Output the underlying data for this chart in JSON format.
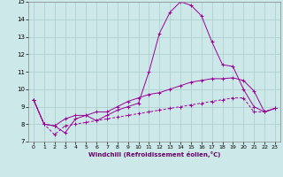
{
  "xlabel": "Windchill (Refroidissement éolien,°C)",
  "background_color": "#cce8e8",
  "grid_color": "#aacccc",
  "line_color": "#990099",
  "xlim": [
    -0.5,
    23.5
  ],
  "ylim": [
    7,
    15
  ],
  "xticks": [
    0,
    1,
    2,
    3,
    4,
    5,
    6,
    7,
    8,
    9,
    10,
    11,
    12,
    13,
    14,
    15,
    16,
    17,
    18,
    19,
    20,
    21,
    22,
    23
  ],
  "yticks": [
    7,
    8,
    9,
    10,
    11,
    12,
    13,
    14,
    15
  ],
  "line_big_x": [
    0,
    1,
    2,
    3,
    4,
    5,
    6,
    7,
    8,
    9,
    10,
    11,
    12,
    13,
    14,
    15,
    16,
    17,
    18,
    19,
    20,
    21,
    22,
    23
  ],
  "line_big_y": [
    9.4,
    8.0,
    7.9,
    7.5,
    8.3,
    8.5,
    8.2,
    8.5,
    8.8,
    9.0,
    9.2,
    11.0,
    13.2,
    14.4,
    15.0,
    14.8,
    14.2,
    12.7,
    11.4,
    11.3,
    10.0,
    9.0,
    8.7,
    8.9
  ],
  "line_mid_x": [
    0,
    1,
    2,
    3,
    4,
    5,
    6,
    7,
    8,
    9,
    10,
    11,
    12,
    13,
    14,
    15,
    16,
    17,
    18,
    19,
    20,
    21,
    22,
    23
  ],
  "line_mid_y": [
    9.4,
    8.0,
    7.9,
    8.3,
    8.5,
    8.5,
    8.7,
    8.7,
    9.0,
    9.3,
    9.5,
    9.7,
    9.8,
    10.0,
    10.2,
    10.4,
    10.5,
    10.6,
    10.6,
    10.65,
    10.5,
    9.9,
    8.7,
    8.9
  ],
  "line_low_x": [
    0,
    1,
    2,
    3,
    4,
    5,
    6,
    7,
    8,
    9,
    10,
    11,
    12,
    13,
    14,
    15,
    16,
    17,
    18,
    19,
    20,
    21,
    22,
    23
  ],
  "line_low_y": [
    9.4,
    8.0,
    7.4,
    7.9,
    8.0,
    8.1,
    8.2,
    8.3,
    8.4,
    8.5,
    8.6,
    8.7,
    8.8,
    8.9,
    9.0,
    9.1,
    9.2,
    9.3,
    9.4,
    9.5,
    9.5,
    8.7,
    8.7,
    8.9
  ]
}
